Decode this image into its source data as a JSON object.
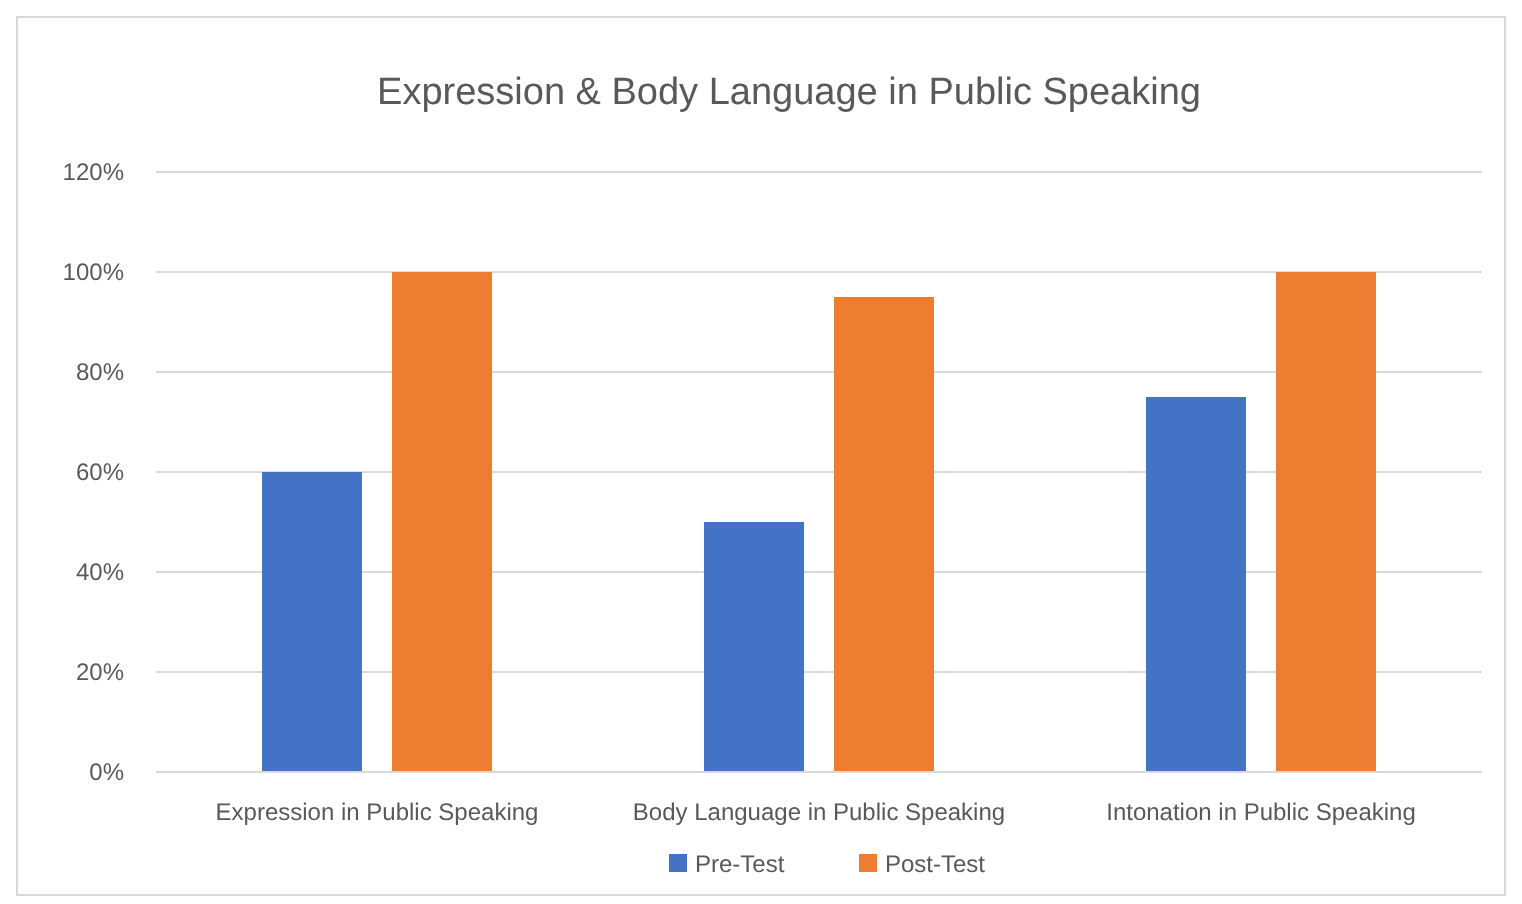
{
  "chart_data": {
    "type": "bar",
    "title": "Expression & Body Language in Public Speaking",
    "categories": [
      "Expression in Public Speaking",
      "Body Language in Public Speaking",
      "Intonation in Public Speaking"
    ],
    "series": [
      {
        "name": "Pre-Test",
        "color": "#4472c4",
        "values": [
          60,
          50,
          75
        ]
      },
      {
        "name": "Post-Test",
        "color": "#ed7d31",
        "values": [
          100,
          95,
          100
        ]
      }
    ],
    "ylim": [
      0,
      120
    ],
    "yticks": [
      {
        "value": 0,
        "label": "0%"
      },
      {
        "value": 20,
        "label": "20%"
      },
      {
        "value": 40,
        "label": "40%"
      },
      {
        "value": 60,
        "label": "60%"
      },
      {
        "value": 80,
        "label": "80%"
      },
      {
        "value": 100,
        "label": "100%"
      },
      {
        "value": 120,
        "label": "120%"
      }
    ],
    "grid": "y",
    "legend": "bottom"
  }
}
